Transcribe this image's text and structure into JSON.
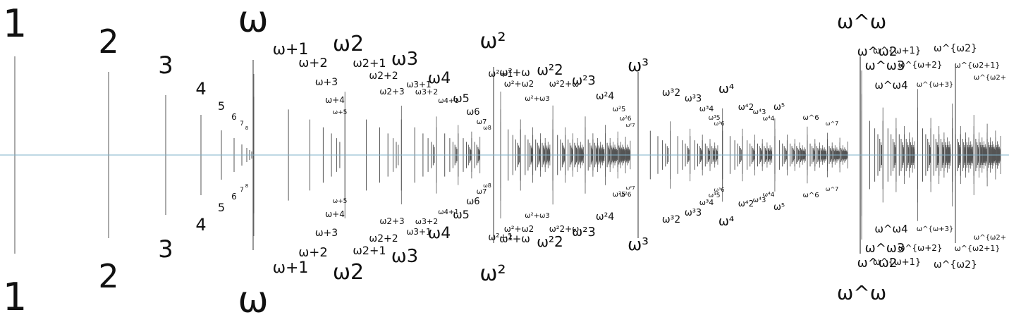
{
  "colors": {
    "background": "#ffffff",
    "tick": "#555555",
    "axis": "#7fb0c8",
    "label": "#111111"
  },
  "major_labels": [
    {
      "id": "one",
      "text": "1"
    },
    {
      "id": "two",
      "text": "2"
    },
    {
      "id": "three",
      "text": "3"
    },
    {
      "id": "four",
      "text": "4"
    },
    {
      "id": "five",
      "text": "5"
    },
    {
      "id": "six",
      "text": "6"
    },
    {
      "id": "seven",
      "text": "7"
    },
    {
      "id": "eight",
      "text": "8"
    },
    {
      "id": "omega",
      "text": "ω"
    },
    {
      "id": "omega-plus-1",
      "text": "ω+1"
    },
    {
      "id": "omega-plus-2",
      "text": "ω+2"
    },
    {
      "id": "omega-plus-3",
      "text": "ω+3"
    },
    {
      "id": "omega-plus-4",
      "text": "ω+4"
    },
    {
      "id": "omega-plus-5",
      "text": "ω+5"
    },
    {
      "id": "omega-2",
      "text": "ω2"
    },
    {
      "id": "omega-2-plus-1",
      "text": "ω2+1"
    },
    {
      "id": "omega-2-plus-2",
      "text": "ω2+2"
    },
    {
      "id": "omega-2-plus-3",
      "text": "ω2+3"
    },
    {
      "id": "omega-3",
      "text": "ω3"
    },
    {
      "id": "omega-3-plus-1",
      "text": "ω3+1"
    },
    {
      "id": "omega-3-plus-2",
      "text": "ω3+2"
    },
    {
      "id": "omega-4",
      "text": "ω4"
    },
    {
      "id": "omega-4-plus-1",
      "text": "ω4+1"
    },
    {
      "id": "omega-5",
      "text": "ω5"
    },
    {
      "id": "omega-6",
      "text": "ω6"
    },
    {
      "id": "omega-7",
      "text": "ω7"
    },
    {
      "id": "omega-8",
      "text": "ω8"
    },
    {
      "id": "omega-squared",
      "text": "ω²"
    },
    {
      "id": "omega-squared-plus-1",
      "text": "ω²+1"
    },
    {
      "id": "omega-squared-plus-omega",
      "text": "ω²+ω"
    },
    {
      "id": "omega-squared-plus-omega-2",
      "text": "ω²+ω2"
    },
    {
      "id": "omega-squared-plus-omega-3",
      "text": "ω²+ω3"
    },
    {
      "id": "omega-squared-2",
      "text": "ω²2"
    },
    {
      "id": "omega-squared-2-plus-omega",
      "text": "ω²2+ω"
    },
    {
      "id": "omega-squared-3",
      "text": "ω²3"
    },
    {
      "id": "omega-squared-4",
      "text": "ω²4"
    },
    {
      "id": "omega-squared-5",
      "text": "ω²5"
    },
    {
      "id": "omega-squared-6",
      "text": "ω²6"
    },
    {
      "id": "omega-squared-7",
      "text": "ω²7"
    },
    {
      "id": "omega-cubed",
      "text": "ω³"
    },
    {
      "id": "omega-cubed-2",
      "text": "ω³2"
    },
    {
      "id": "omega-cubed-3",
      "text": "ω³3"
    },
    {
      "id": "omega-cubed-4",
      "text": "ω³4"
    },
    {
      "id": "omega-cubed-5",
      "text": "ω³5"
    },
    {
      "id": "omega-cubed-6",
      "text": "ω³6"
    },
    {
      "id": "omega-4th",
      "text": "ω⁴"
    },
    {
      "id": "omega-4th-2",
      "text": "ω⁴2"
    },
    {
      "id": "omega-4th-3",
      "text": "ω⁴3"
    },
    {
      "id": "omega-4th-4",
      "text": "ω⁴4"
    },
    {
      "id": "omega-5th",
      "text": "ω⁵"
    },
    {
      "id": "omega-to-6",
      "text": "ω^6"
    },
    {
      "id": "omega-to-7",
      "text": "ω^7"
    },
    {
      "id": "omega-to-omega",
      "text": "ω^ω"
    },
    {
      "id": "omega-to-omega-plus-1",
      "text": "ω^{ω+1}"
    },
    {
      "id": "omega-to-omega-plus-2",
      "text": "ω^{ω+2}"
    },
    {
      "id": "omega-to-omega-plus-3",
      "text": "ω^{ω+3}"
    },
    {
      "id": "omega-to-omega-2",
      "text": "ω^ω2"
    },
    {
      "id": "omega-to-omega-3",
      "text": "ω^ω3"
    },
    {
      "id": "omega-to-omega-4",
      "text": "ω^ω4"
    },
    {
      "id": "omega-to-omega2-braced",
      "text": "ω^{ω2}"
    },
    {
      "id": "omega-to-omega2-plus-1",
      "text": "ω^{ω2+1}"
    },
    {
      "id": "omega-to-omega2-plus",
      "text": "ω^{ω2+"
    }
  ]
}
